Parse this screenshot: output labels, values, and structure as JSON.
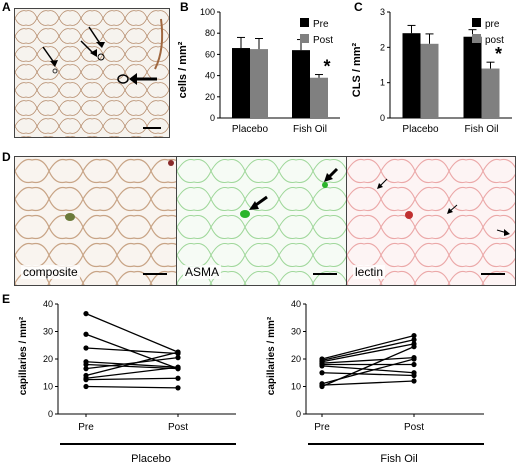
{
  "panels": {
    "A": "A",
    "B": "B",
    "C": "C",
    "D": "D",
    "E": "E"
  },
  "chart_data": [
    {
      "id": "B",
      "type": "bar",
      "categories": [
        "Placebo",
        "Fish Oil"
      ],
      "series": [
        {
          "name": "Pre",
          "values": [
            66,
            64
          ],
          "errors": [
            10,
            10
          ],
          "color": "#000000"
        },
        {
          "name": "Post",
          "values": [
            65,
            38
          ],
          "errors": [
            10,
            3
          ],
          "color": "#808080"
        }
      ],
      "ylabel": "cells / mm²",
      "ylim": [
        0,
        100
      ],
      "yticks": [
        0,
        20,
        40,
        60,
        80,
        100
      ],
      "annotation": "*",
      "legend": "top-right"
    },
    {
      "id": "C",
      "type": "bar",
      "categories": [
        "Placebo",
        "Fish Oil"
      ],
      "series": [
        {
          "name": "pre",
          "values": [
            2.4,
            2.3
          ],
          "errors": [
            0.22,
            0.2
          ],
          "color": "#000000"
        },
        {
          "name": "post",
          "values": [
            2.1,
            1.4
          ],
          "errors": [
            0.28,
            0.18
          ],
          "color": "#808080"
        }
      ],
      "ylabel": "CLS / mm²",
      "ylim": [
        0,
        3
      ],
      "yticks": [
        0,
        1,
        2,
        3
      ],
      "annotation": "*",
      "legend": "top-right"
    },
    {
      "id": "E-placebo",
      "type": "line",
      "x": [
        "Pre",
        "Post"
      ],
      "pairs": [
        [
          36.5,
          22.5
        ],
        [
          29,
          16.5
        ],
        [
          24,
          22
        ],
        [
          19,
          17
        ],
        [
          18,
          16.5
        ],
        [
          16.5,
          20.5
        ],
        [
          14,
          22.5
        ],
        [
          12.5,
          13
        ],
        [
          10,
          9.5
        ],
        [
          13,
          17
        ]
      ],
      "ylabel": "capillaries / mm²",
      "ylim": [
        0,
        40
      ],
      "yticks": [
        0,
        10,
        20,
        30,
        40
      ],
      "group": "Placebo"
    },
    {
      "id": "E-fishoil",
      "type": "line",
      "x": [
        "Pre",
        "Post"
      ],
      "pairs": [
        [
          20,
          28.5
        ],
        [
          19.5,
          27
        ],
        [
          19,
          25.5
        ],
        [
          18.5,
          20.5
        ],
        [
          18,
          18
        ],
        [
          17.5,
          15
        ],
        [
          15,
          14
        ],
        [
          11,
          20
        ],
        [
          10.5,
          12
        ],
        [
          10,
          24.5
        ]
      ],
      "ylabel": "capillaries / mm²",
      "ylim": [
        0,
        40
      ],
      "yticks": [
        0,
        10,
        20,
        30,
        40
      ],
      "group": "Fish Oil"
    }
  ],
  "micrographs": {
    "composite": "composite",
    "asma": "ASMA",
    "lectin": "lectin"
  }
}
